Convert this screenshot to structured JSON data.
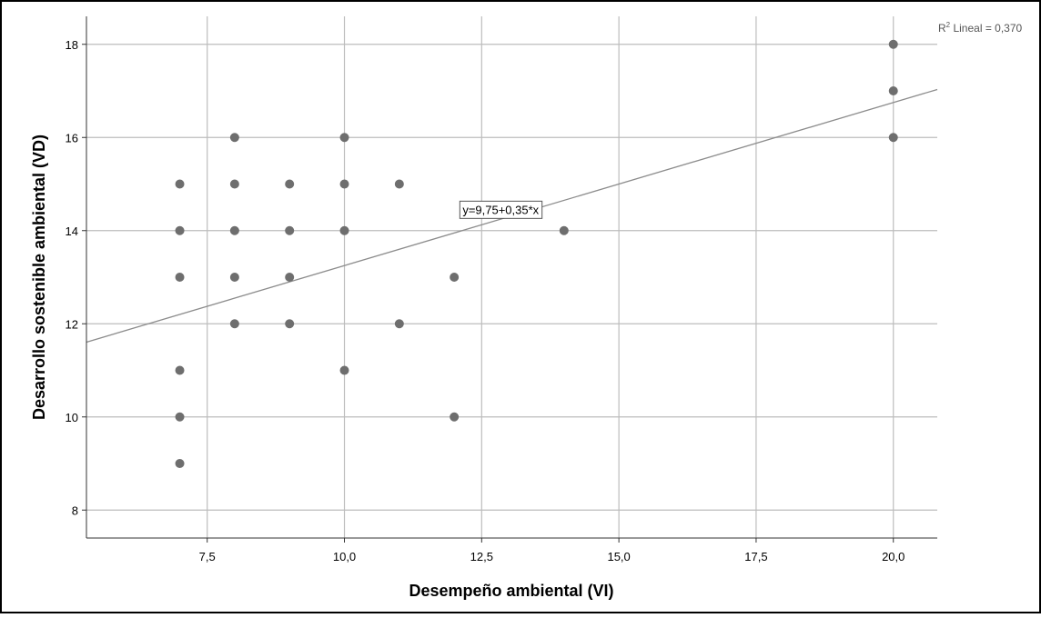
{
  "chart_data": {
    "type": "scatter",
    "xlabel": "Desempeño ambiental (VI)",
    "ylabel": "Desarrollo sostenible ambiental (VD)",
    "xlim": [
      5.3,
      20.8
    ],
    "ylim": [
      7.4,
      18.6
    ],
    "x_ticks": [
      7.5,
      10.0,
      12.5,
      15.0,
      17.5,
      20.0
    ],
    "x_tick_labels": [
      "7,5",
      "10,0",
      "12,5",
      "15,0",
      "17,5",
      "20,0"
    ],
    "y_ticks": [
      8,
      10,
      12,
      14,
      16,
      18
    ],
    "y_tick_labels": [
      "8",
      "10",
      "12",
      "14",
      "16",
      "18"
    ],
    "grid": true,
    "points": [
      {
        "x": 7,
        "y": 15
      },
      {
        "x": 7,
        "y": 14
      },
      {
        "x": 7,
        "y": 13
      },
      {
        "x": 7,
        "y": 11
      },
      {
        "x": 7,
        "y": 10
      },
      {
        "x": 7,
        "y": 9
      },
      {
        "x": 8,
        "y": 16
      },
      {
        "x": 8,
        "y": 15
      },
      {
        "x": 8,
        "y": 14
      },
      {
        "x": 8,
        "y": 13
      },
      {
        "x": 8,
        "y": 12
      },
      {
        "x": 9,
        "y": 15
      },
      {
        "x": 9,
        "y": 14
      },
      {
        "x": 9,
        "y": 13
      },
      {
        "x": 9,
        "y": 12
      },
      {
        "x": 10,
        "y": 16
      },
      {
        "x": 10,
        "y": 15
      },
      {
        "x": 10,
        "y": 14
      },
      {
        "x": 10,
        "y": 11
      },
      {
        "x": 11,
        "y": 15
      },
      {
        "x": 11,
        "y": 12
      },
      {
        "x": 12,
        "y": 13
      },
      {
        "x": 12,
        "y": 10
      },
      {
        "x": 14,
        "y": 14
      },
      {
        "x": 20,
        "y": 18
      },
      {
        "x": 20,
        "y": 17
      },
      {
        "x": 20,
        "y": 16
      }
    ],
    "fit_line": {
      "intercept": 9.75,
      "slope": 0.35,
      "label": "y=9,75+0,35*x"
    },
    "r2_label_prefix": "R",
    "r2_label_sup": "2",
    "r2_label_suffix": " Lineal = 0,370",
    "colors": {
      "point": "#6e6e6e",
      "grid": "#bdbdbd",
      "fit_line": "#8c8c8c",
      "axis": "#333333",
      "border": "#000000"
    }
  }
}
